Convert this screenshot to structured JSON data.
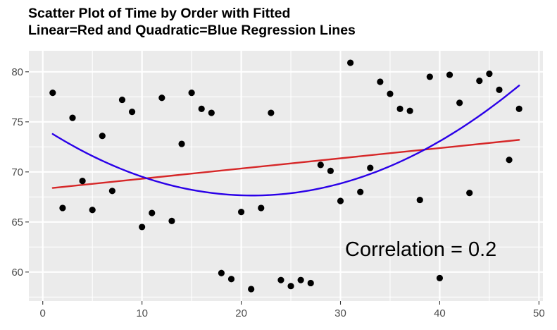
{
  "chart_data": {
    "type": "scatter",
    "title_lines": [
      "Scatter Plot of Time by Order with Fitted",
      "Linear=Red and Quadratic=Blue Regression Lines"
    ],
    "xlabel": "",
    "ylabel": "",
    "xlim": [
      -1.4,
      50.4
    ],
    "ylim": [
      57.1,
      82.1
    ],
    "x_ticks": [
      0,
      10,
      20,
      30,
      40,
      50
    ],
    "y_ticks": [
      60,
      65,
      70,
      75,
      80
    ],
    "grid": true,
    "points": [
      {
        "x": 1,
        "y": 77.9
      },
      {
        "x": 2,
        "y": 66.4
      },
      {
        "x": 3,
        "y": 75.4
      },
      {
        "x": 4,
        "y": 69.1
      },
      {
        "x": 5,
        "y": 66.2
      },
      {
        "x": 6,
        "y": 73.6
      },
      {
        "x": 7,
        "y": 68.1
      },
      {
        "x": 8,
        "y": 77.2
      },
      {
        "x": 9,
        "y": 76.0
      },
      {
        "x": 10,
        "y": 64.5
      },
      {
        "x": 11,
        "y": 65.9
      },
      {
        "x": 12,
        "y": 77.4
      },
      {
        "x": 13,
        "y": 65.1
      },
      {
        "x": 14,
        "y": 72.8
      },
      {
        "x": 15,
        "y": 77.9
      },
      {
        "x": 16,
        "y": 76.3
      },
      {
        "x": 17,
        "y": 75.9
      },
      {
        "x": 18,
        "y": 59.9
      },
      {
        "x": 19,
        "y": 59.3
      },
      {
        "x": 20,
        "y": 66.0
      },
      {
        "x": 21,
        "y": 58.3
      },
      {
        "x": 22,
        "y": 66.4
      },
      {
        "x": 23,
        "y": 75.9
      },
      {
        "x": 24,
        "y": 59.2
      },
      {
        "x": 25,
        "y": 58.6
      },
      {
        "x": 26,
        "y": 59.2
      },
      {
        "x": 27,
        "y": 58.9
      },
      {
        "x": 28,
        "y": 70.7
      },
      {
        "x": 29,
        "y": 70.1
      },
      {
        "x": 30,
        "y": 67.1
      },
      {
        "x": 31,
        "y": 80.9
      },
      {
        "x": 32,
        "y": 68.0
      },
      {
        "x": 33,
        "y": 70.4
      },
      {
        "x": 34,
        "y": 79.0
      },
      {
        "x": 35,
        "y": 77.8
      },
      {
        "x": 36,
        "y": 76.3
      },
      {
        "x": 37,
        "y": 76.1
      },
      {
        "x": 38,
        "y": 67.2
      },
      {
        "x": 39,
        "y": 79.5
      },
      {
        "x": 40,
        "y": 59.4
      },
      {
        "x": 41,
        "y": 79.7
      },
      {
        "x": 42,
        "y": 76.9
      },
      {
        "x": 43,
        "y": 67.9
      },
      {
        "x": 44,
        "y": 79.1
      },
      {
        "x": 45,
        "y": 79.8
      },
      {
        "x": 46,
        "y": 78.2
      },
      {
        "x": 47,
        "y": 71.2
      },
      {
        "x": 48,
        "y": 76.3
      }
    ],
    "linear_fit": {
      "color": "#d62728",
      "points": [
        [
          1,
          68.4
        ],
        [
          48,
          73.2
        ]
      ]
    },
    "quadratic_fit": {
      "color": "#2a00e8",
      "points": [
        [
          1,
          73.8
        ],
        [
          10,
          69.5
        ],
        [
          21,
          67.7
        ],
        [
          31,
          69.0
        ],
        [
          38,
          72.1
        ],
        [
          48,
          78.6
        ]
      ]
    },
    "annotation": {
      "text": "Correlation = 0.2",
      "x": 38.1,
      "y": 62.3
    }
  }
}
